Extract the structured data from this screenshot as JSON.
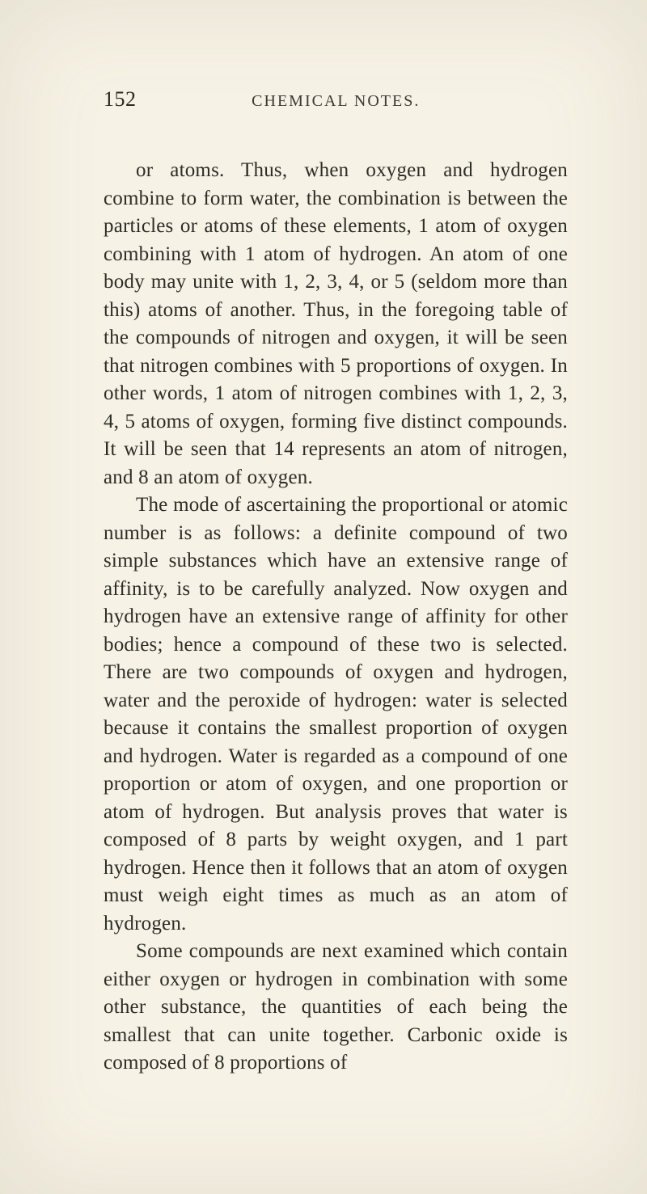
{
  "page": {
    "number": "152",
    "running_title": "CHEMICAL NOTES.",
    "background_color": "#f6f2e5",
    "text_color": "#2d2d25",
    "body_fontsize": 25,
    "header_fontsize": 20,
    "line_height": 1.38,
    "paragraphs": [
      "or atoms. Thus, when oxygen and hydrogen combine to form water, the combination is between the particles or atoms of these elements, 1 atom of oxygen combining with 1 atom of hydrogen. An atom of one body may unite with 1, 2, 3, 4, or 5 (seldom more than this) atoms of another. Thus, in the foregoing table of the compounds of nitrogen and oxygen, it will be seen that nitrogen combines with 5 proportions of oxygen. In other words, 1 atom of nitrogen combines with 1, 2, 3, 4, 5 atoms of oxygen, forming five distinct com­pounds. It will be seen that 14 represents an atom of nitrogen, and 8 an atom of oxygen.",
      "The mode of ascertaining the proportional or atomic number is as follows: a definite compound of two simple substances which have an extensive range of affinity, is to be carefully analyzed. Now oxygen and hydrogen have an extensive range of affinity for other bodies; hence a com­pound of these two is selected. There are two compounds of oxygen and hydrogen, water and the peroxide of hydrogen: water is selected because it contains the smallest proportion of oxygen and hydrogen. Water is regarded as a compound of one proportion or atom of oxygen, and one proportion or atom of hydrogen. But analysis proves that water is composed of 8 parts by weight oxygen, and 1 part hydrogen. Hence then it follows that an atom of oxygen must weigh eight times as much as an atom of hydrogen.",
      "Some compounds are next examined which contain either oxygen or hydrogen in combination with some other substance, the quantities of each being the smallest that can unite together. Carbonic oxide is composed of 8 proportions of"
    ]
  }
}
